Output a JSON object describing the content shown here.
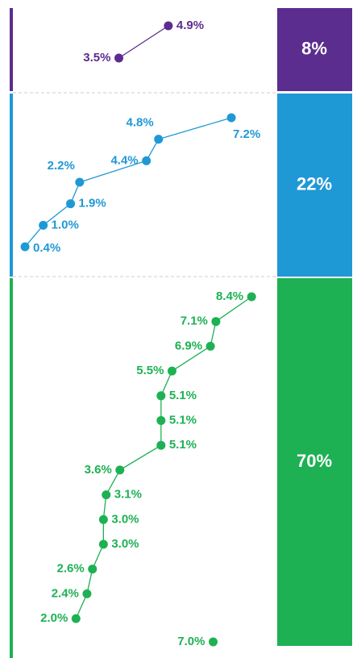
{
  "chart_data": {
    "type": "dot-line",
    "groups": [
      {
        "share": 8,
        "share_label": "8%",
        "color": "#5b2d8e",
        "xlim": [
          0.5,
          7.8
        ],
        "values": [
          4.9,
          3.5
        ],
        "value_labels": [
          "4.9%",
          "3.5%"
        ]
      },
      {
        "share": 22,
        "share_label": "22%",
        "color": "#1f98d6",
        "xlim": [
          0,
          8.5
        ],
        "values": [
          7.2,
          4.8,
          4.4,
          2.2,
          1.9,
          1.0,
          0.4
        ],
        "value_labels": [
          "7.2%",
          "4.8%",
          "4.4%",
          "2.2%",
          "1.9%",
          "1.0%",
          "0.4%"
        ]
      },
      {
        "share": 70,
        "share_label": "70%",
        "color": "#1db153",
        "xlim": [
          -0.3,
          9.1
        ],
        "values": [
          8.4,
          7.1,
          6.9,
          5.5,
          5.1,
          5.1,
          5.1,
          3.6,
          3.1,
          3.0,
          3.0,
          2.6,
          2.4,
          2.0
        ],
        "value_labels": [
          "8.4%",
          "7.1%",
          "6.9%",
          "5.5%",
          "5.1%",
          "5.1%",
          "5.1%",
          "3.6%",
          "3.1%",
          "3.0%",
          "3.0%",
          "2.6%",
          "2.4%",
          "2.0%"
        ],
        "extra": {
          "value": 7.0,
          "label": "7.0%"
        }
      }
    ]
  }
}
